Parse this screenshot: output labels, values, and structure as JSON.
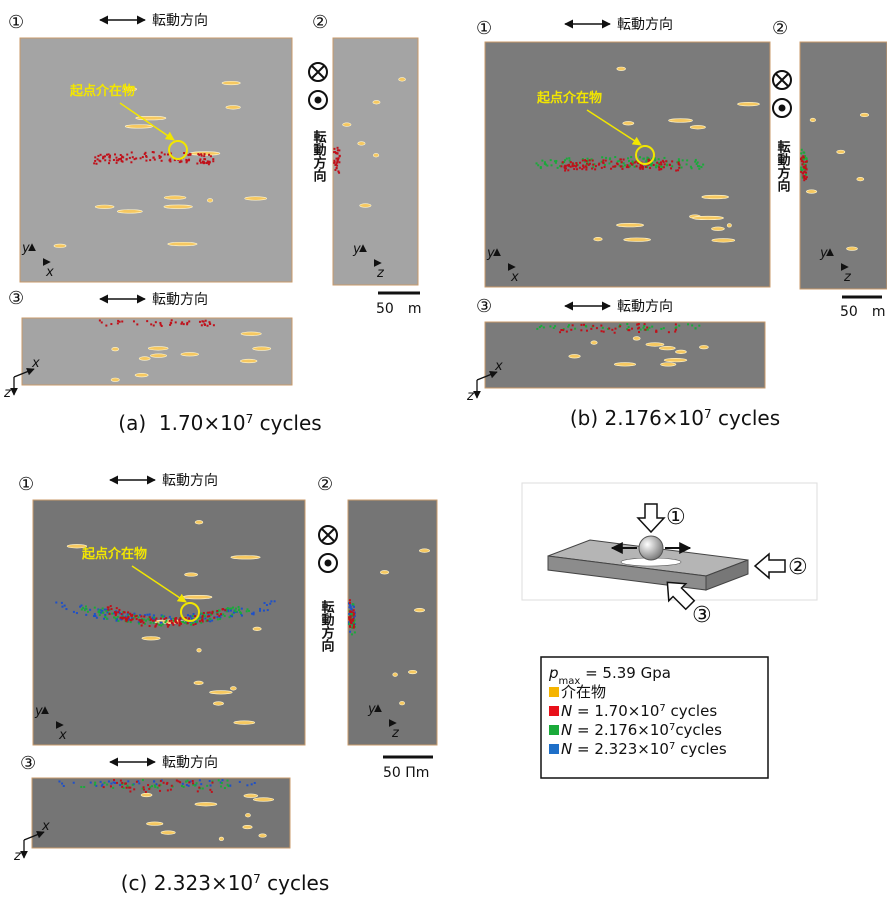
{
  "panels": [
    {
      "view1": "①",
      "direction": "転動方向",
      "view2": "②",
      "side_direction": "転動方向",
      "origin": "起点介在物",
      "view3": "③",
      "bottom_direction": "転動方向",
      "axes1": [
        "y",
        "x"
      ],
      "axes2": [
        "y",
        "z"
      ],
      "axes3": [
        "x",
        "z"
      ],
      "scale": "50　m",
      "caption": {
        "text": "(a)  1.70×10",
        "exponent": "7",
        "suffix": " cycles"
      }
    },
    {
      "view1": "①",
      "direction": "転動方向",
      "view2": "②",
      "side_direction": "転動方向",
      "origin": "起点介在物",
      "view3": "③",
      "bottom_direction": "転動方向",
      "axes1": [
        "y",
        "x"
      ],
      "axes2": [
        "y",
        "z"
      ],
      "axes3": [
        "x",
        "z"
      ],
      "scale": "50　m",
      "caption": {
        "text": "(b) 2.176×10",
        "exponent": "7",
        "suffix": " cycles"
      }
    },
    {
      "view1": "①",
      "direction": "転動方向",
      "view2": "②",
      "side_direction": "転動方向",
      "origin": "起点介在物",
      "view3": "③",
      "bottom_direction": "転動方向",
      "axes1": [
        "y",
        "x"
      ],
      "axes2": [
        "y",
        "z"
      ],
      "axes3": [
        "x",
        "z"
      ],
      "scale": "50 Πm",
      "caption": {
        "text": "(c) 2.323×10",
        "exponent": "7",
        "suffix": " cycles"
      }
    }
  ],
  "diagram": {
    "labels": [
      "①",
      "②",
      "③"
    ]
  },
  "legend": {
    "pmax": {
      "symbol": "p",
      "subscript": "max",
      "text": " = 5.39 Gpa"
    },
    "items": [
      {
        "text": "介在物"
      },
      {
        "symbol": "N",
        "text": " = 1.70×10",
        "exponent": "7",
        "suffix": " cycles"
      },
      {
        "symbol": "N",
        "text": " = 2.176×10",
        "exponent": "7",
        "suffix": "cycles"
      },
      {
        "symbol": "N",
        "text": " = 2.323×10",
        "exponent": "7",
        "suffix": " cycles"
      }
    ]
  }
}
